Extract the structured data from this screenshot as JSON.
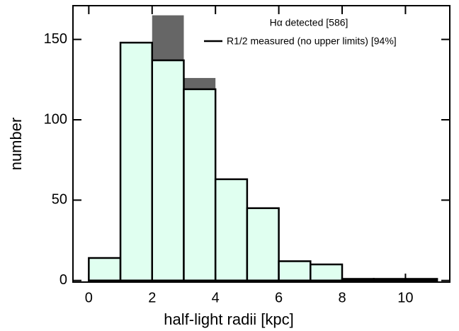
{
  "chart_data": {
    "type": "histogram",
    "xlabel": "half-light radii [kpc]",
    "ylabel": "number",
    "bins": [
      0,
      1,
      2,
      3,
      4,
      5,
      6,
      7,
      8,
      9,
      10,
      11
    ],
    "series": [
      {
        "name": "Hα detected [586]",
        "color": "#666666",
        "values": [
          14,
          148,
          165,
          126,
          63,
          45,
          12,
          10,
          1,
          1,
          1
        ]
      },
      {
        "name": "R1/2 measured (no upper limits) [94%]",
        "color": "#e0fff0",
        "values": [
          14,
          148,
          137,
          119,
          63,
          45,
          12,
          10,
          1,
          1,
          1
        ]
      }
    ],
    "xlim": [
      -0.5,
      11.4
    ],
    "ylim": [
      -1,
      171
    ],
    "xticks": [
      0,
      2,
      4,
      6,
      8,
      10
    ],
    "yticks": [
      0,
      50,
      100,
      150
    ]
  }
}
